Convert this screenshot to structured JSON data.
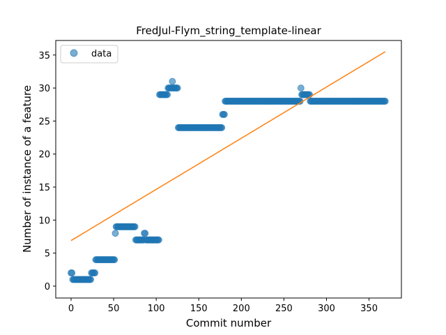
{
  "chart_data": {
    "type": "scatter",
    "title": "FredJul-Flym_string_template-linear",
    "xlabel": "Commit number",
    "ylabel": "Number of instance of a feature",
    "xlim": [
      -18,
      388
    ],
    "ylim": [
      -1.8,
      37.2
    ],
    "xticks": [
      0,
      50,
      100,
      150,
      200,
      250,
      300,
      350
    ],
    "yticks": [
      0,
      5,
      10,
      15,
      20,
      25,
      30,
      35
    ],
    "grid": false,
    "legend_position": "top-left",
    "legend": [
      "data"
    ],
    "colors": {
      "data": "#1f77b4",
      "fit": "#ff7f0e"
    },
    "series": [
      {
        "name": "data",
        "kind": "scatter",
        "segments": [
          {
            "x_start": 0,
            "x_end": 1,
            "y": 2
          },
          {
            "x_start": 2,
            "x_end": 23,
            "y": 1
          },
          {
            "x_start": 24,
            "x_end": 28,
            "y": 2
          },
          {
            "x_start": 29,
            "x_end": 51,
            "y": 4
          },
          {
            "x_start": 52,
            "x_end": 52,
            "y": 8
          },
          {
            "x_start": 53,
            "x_end": 75,
            "y": 9
          },
          {
            "x_start": 76,
            "x_end": 85,
            "y": 7
          },
          {
            "x_start": 86,
            "x_end": 87,
            "y": 8
          },
          {
            "x_start": 88,
            "x_end": 103,
            "y": 7
          },
          {
            "x_start": 104,
            "x_end": 113,
            "y": 29
          },
          {
            "x_start": 114,
            "x_end": 118,
            "y": 30
          },
          {
            "x_start": 119,
            "x_end": 119,
            "y": 31
          },
          {
            "x_start": 120,
            "x_end": 125,
            "y": 30
          },
          {
            "x_start": 126,
            "x_end": 177,
            "y": 24
          },
          {
            "x_start": 178,
            "x_end": 180,
            "y": 26
          },
          {
            "x_start": 181,
            "x_end": 269,
            "y": 28
          },
          {
            "x_start": 270,
            "x_end": 270,
            "y": 30
          },
          {
            "x_start": 271,
            "x_end": 280,
            "y": 29
          },
          {
            "x_start": 281,
            "x_end": 369,
            "y": 28
          }
        ]
      },
      {
        "name": "fit",
        "kind": "line",
        "x": [
          0,
          369
        ],
        "y": [
          6.9,
          35.5
        ]
      }
    ]
  }
}
